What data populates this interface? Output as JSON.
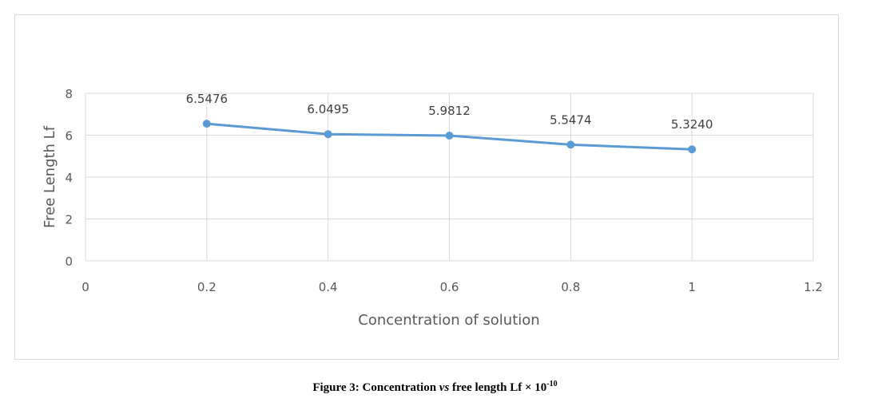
{
  "chart_data": {
    "type": "line",
    "title": "",
    "xlabel": "Concentration of solution",
    "ylabel": "Free Length Lf",
    "xlim": [
      0,
      1.2
    ],
    "ylim": [
      0,
      8
    ],
    "xticks": [
      "0",
      "0.2",
      "0.4",
      "0.6",
      "0.8",
      "1",
      "1.2"
    ],
    "yticks": [
      "0",
      "2",
      "4",
      "6",
      "8"
    ],
    "grid": true,
    "series": [
      {
        "name": "Free Length Lf",
        "color": "#5b9bd5",
        "x": [
          0.2,
          0.4,
          0.6,
          0.8,
          1.0
        ],
        "y": [
          6.5476,
          6.0495,
          5.9812,
          5.5474,
          5.324
        ],
        "labels": [
          "6.5476",
          "6.0495",
          "5.9812",
          "5.5474",
          "5.3240"
        ]
      }
    ]
  },
  "caption": {
    "prefix": "Figure 3: Concentration ",
    "italic": "vs",
    "suffix": " free length Lf × 10",
    "exponent": "-10"
  }
}
